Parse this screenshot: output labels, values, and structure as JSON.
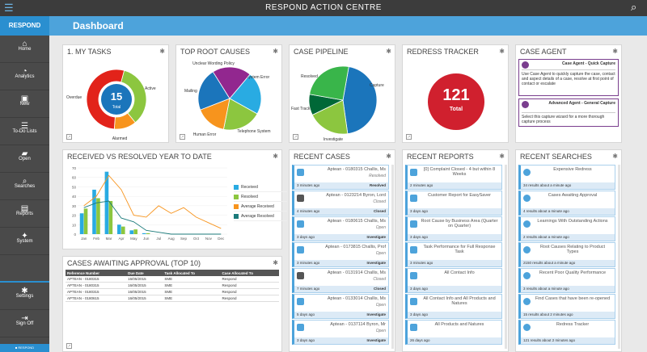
{
  "app": {
    "title": "RESPOND ACTION CENTRE",
    "brand": "RESPOND",
    "user": "■ RESPOND"
  },
  "header": {
    "title": "Dashboard"
  },
  "sidebar": {
    "items": [
      {
        "label": "Home",
        "icon": "home-icon",
        "glyph": "⌂"
      },
      {
        "label": "Analytics",
        "icon": "pie-icon",
        "glyph": "◔"
      },
      {
        "label": "New",
        "icon": "briefcase-icon",
        "glyph": "▣"
      },
      {
        "label": "To-Do Lists",
        "icon": "todo-icon",
        "glyph": "☰"
      },
      {
        "label": "Open",
        "icon": "folder-icon",
        "glyph": "▰"
      },
      {
        "label": "Searches",
        "icon": "magnifier-icon",
        "glyph": "⌕"
      },
      {
        "label": "Reports",
        "icon": "chart-icon",
        "glyph": "▤"
      },
      {
        "label": "System",
        "icon": "puzzle-icon",
        "glyph": "✦"
      }
    ],
    "bottom": [
      {
        "label": "Settings",
        "icon": "gear-icon",
        "glyph": "✱"
      },
      {
        "label": "Sign Off",
        "icon": "signoff-icon",
        "glyph": "⇥"
      }
    ]
  },
  "my_tasks": {
    "title": "1. MY TASKS",
    "total": "15",
    "total_label": "Total",
    "segments": [
      {
        "label": "Active",
        "value": 0.35,
        "color": "#8cc63f"
      },
      {
        "label": "Alarmed",
        "value": 0.12,
        "color": "#f7941d"
      },
      {
        "label": "Overdue",
        "value": 0.53,
        "color": "#e2231a"
      }
    ]
  },
  "root_causes": {
    "title": "TOP ROOT CAUSES",
    "segments": [
      {
        "label": "System Error",
        "value": 0.22,
        "color": "#29abe2"
      },
      {
        "label": "Telephone System",
        "value": 0.2,
        "color": "#8cc63f"
      },
      {
        "label": "Human Error",
        "value": 0.16,
        "color": "#f7941d"
      },
      {
        "label": "Mailing",
        "value": 0.22,
        "color": "#1b75bb"
      },
      {
        "label": "Unclear Wording Policy",
        "value": 0.2,
        "color": "#92278f"
      }
    ]
  },
  "pipeline": {
    "title": "CASE PIPELINE",
    "segments": [
      {
        "label": "Capture",
        "value": 0.45,
        "color": "#1b75bb"
      },
      {
        "label": "Investigate",
        "value": 0.2,
        "color": "#8cc63f"
      },
      {
        "label": "Fast Track",
        "value": 0.1,
        "color": "#006837"
      },
      {
        "label": "Resolved",
        "value": 0.25,
        "color": "#39b54a"
      }
    ]
  },
  "redress": {
    "title": "REDRESS TRACKER",
    "value": "121",
    "label": "Total"
  },
  "case_agent": {
    "title": "CASE AGENT",
    "cards": [
      {
        "head": "Case Agent - Quick Capture",
        "body": "Use Case Agent to quickly capture the case, contact and aspect details of a case, resolve at first point of contact or escalate"
      },
      {
        "head": "Advanced Agent - General Capture",
        "body": "Select this capture wizard for a more thorough capture process"
      }
    ]
  },
  "received_resolved": {
    "title": "RECEIVED VS RESOLVED YEAR TO DATE",
    "legend": [
      {
        "label": "Received",
        "color": "#29abe2"
      },
      {
        "label": "Resolved",
        "color": "#8cc63f"
      },
      {
        "label": "Average Received",
        "color": "#f7941d"
      },
      {
        "label": "Average Resolved",
        "color": "#1b7a7a"
      }
    ]
  },
  "chart_data": {
    "type": "bar",
    "categories": [
      "Jan",
      "Feb",
      "Mar",
      "Apr",
      "May",
      "Jun",
      "Jul",
      "Aug",
      "Sep",
      "Oct",
      "Nov",
      "Dec"
    ],
    "ylim": [
      0,
      70
    ],
    "yticks": [
      0,
      10,
      20,
      30,
      40,
      50,
      60,
      70
    ],
    "series": [
      {
        "name": "Received",
        "values": [
          22,
          47,
          66,
          10,
          4,
          1,
          0,
          0,
          0,
          0,
          0,
          0
        ]
      },
      {
        "name": "Resolved",
        "values": [
          27,
          38,
          35,
          8,
          5,
          1,
          0,
          0,
          0,
          0,
          0,
          0
        ]
      },
      {
        "name": "Average Received",
        "values": [
          30,
          40,
          62,
          47,
          20,
          18,
          30,
          22,
          28,
          18,
          12,
          6
        ]
      },
      {
        "name": "Average Resolved",
        "values": [
          28,
          33,
          35,
          17,
          13,
          4,
          2,
          0,
          0,
          0,
          0,
          0
        ]
      }
    ]
  },
  "awaiting": {
    "title": "CASES AWAITING APPROVAL (TOP 10)",
    "columns": [
      "Reference Number",
      "Due Date",
      "Task Allocated To",
      "Case Allocated To"
    ],
    "rows": [
      [
        "APTEAN - 0180315",
        "16/05/2015",
        "SME",
        "Respond"
      ],
      [
        "APTEAN - 0180315",
        "16/05/2015",
        "SME",
        "Respond"
      ],
      [
        "APTEAN - 0180315",
        "16/05/2015",
        "SME",
        "Respond"
      ],
      [
        "APTEAN - 0180615",
        "16/05/2015",
        "SME",
        "Respond"
      ]
    ]
  },
  "recent_cases": {
    "title": "RECENT CASES",
    "items": [
      {
        "title": "Aptean - 0180315 Challis, Ms",
        "status": "Resolved",
        "time": "3 minutes ago",
        "stage": "Resolved",
        "color": "#4da3db"
      },
      {
        "title": "Aptean - 0123214 Byron, Lord",
        "status": "Closed",
        "time": "4 minutes ago",
        "stage": "Closed",
        "color": "#555555"
      },
      {
        "title": "Aptean - 0180615 Challis, Ms",
        "status": "Open",
        "time": "3 days ago",
        "stage": "Investigate",
        "color": "#4da3db"
      },
      {
        "title": "Aptean - 0173815 Challis, Prof",
        "status": "Open",
        "time": "3 minutes ago",
        "stage": "Investigate",
        "color": "#4da3db"
      },
      {
        "title": "Aptean - 0131914 Challis, Ms",
        "status": "Closed",
        "time": "7 minutes ago",
        "stage": "Closed",
        "color": "#555555"
      },
      {
        "title": "Aptean - 0133014 Challis, Ms",
        "status": "Open",
        "time": "5 days ago",
        "stage": "Investigate",
        "color": "#4da3db"
      },
      {
        "title": "Aptean - 0137114 Byron, Mr",
        "status": "Open",
        "time": "3 days ago",
        "stage": "Investigate",
        "color": "#4da3db"
      }
    ]
  },
  "recent_reports": {
    "title": "RECENT REPORTS",
    "items": [
      {
        "title": "[0] Complaint Closed - 4 but within 8 Weeks",
        "time": "2 minutes ago"
      },
      {
        "title": "Customer Report for EasySaver",
        "time": "3 days ago"
      },
      {
        "title": "Root Cause by Business Area (Quarter on Quarter)",
        "time": "3 days ago"
      },
      {
        "title": "Task Performance for Full Response Task",
        "time": "3 minutes ago"
      },
      {
        "title": "All Contact Info",
        "time": "3 days ago"
      },
      {
        "title": "All Contact Info and All Products and Natures",
        "time": "3 days ago"
      },
      {
        "title": "All Products and Natures",
        "time": "26 days ago"
      }
    ]
  },
  "recent_searches": {
    "title": "RECENT SEARCHES",
    "items": [
      {
        "title": "Expensive Redress",
        "time": "34 results about a minute ago"
      },
      {
        "title": "Cases Awaiting Approval",
        "time": "4 results about a minute ago"
      },
      {
        "title": "Learnings With Outstanding Actions",
        "time": "2 results about a minute ago"
      },
      {
        "title": "Root Causes Relating to Product Types",
        "time": "2150 results about a minute ago"
      },
      {
        "title": "Recent Poor Quality Performance",
        "time": "3 results about a minute ago"
      },
      {
        "title": "Find Cases that have been re-opened",
        "time": "15 results about 2 minutes ago"
      },
      {
        "title": "Redress Tracker",
        "time": "121 results about 2 minutes ago"
      }
    ]
  }
}
